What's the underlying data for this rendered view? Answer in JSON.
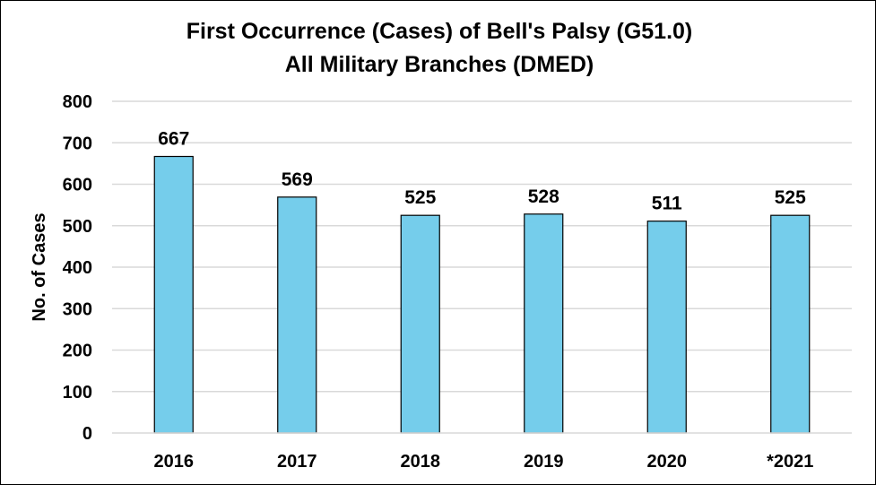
{
  "chart_data": {
    "type": "bar",
    "title_line1": "First Occurrence (Cases) of Bell's Palsy (G51.0)",
    "title_line2": "All Military Branches (DMED)",
    "xlabel": "",
    "ylabel": "No. of Cases",
    "categories": [
      "2016",
      "2017",
      "2018",
      "2019",
      "2020",
      "*2021"
    ],
    "values": [
      667,
      569,
      525,
      528,
      511,
      525
    ],
    "data_labels": [
      "667",
      "569",
      "525",
      "528",
      "511",
      "525"
    ],
    "ylim": [
      0,
      800
    ],
    "yticks": [
      "0",
      "100",
      "200",
      "300",
      "400",
      "500",
      "600",
      "700",
      "800"
    ],
    "grid": true,
    "legend": "none",
    "bar_color": "#75CDEB",
    "bar_edge_color": "#000000",
    "grid_color": "#d9d9d9"
  }
}
